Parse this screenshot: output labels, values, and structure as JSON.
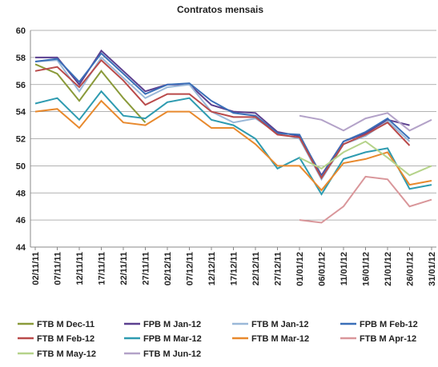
{
  "chart_data": {
    "type": "line",
    "title": "Contratos mensais",
    "categories": [
      "02/11/11",
      "07/11/11",
      "12/11/11",
      "17/11/11",
      "22/11/11",
      "27/11/11",
      "02/12/11",
      "07/12/11",
      "12/12/11",
      "17/12/11",
      "22/12/11",
      "27/12/11",
      "01/01/12",
      "06/01/12",
      "11/01/12",
      "16/01/12",
      "21/01/12",
      "26/01/12",
      "31/01/12"
    ],
    "ylim": [
      44,
      60
    ],
    "yticks": [
      44,
      46,
      48,
      50,
      52,
      54,
      56,
      58,
      60
    ],
    "grid": true,
    "series": [
      {
        "name": "FTB M Dec-11",
        "color": "#8a9a3a",
        "values": [
          57.5,
          56.8,
          54.8,
          57,
          55,
          53.2,
          null,
          null,
          null,
          null,
          null,
          null,
          null,
          null,
          null,
          null,
          null,
          null,
          null
        ]
      },
      {
        "name": "FPB M Jan-12",
        "color": "#5b3f8f",
        "values": [
          58,
          58,
          56,
          58.5,
          57,
          55.5,
          56,
          56,
          54.5,
          54,
          53.9,
          52.5,
          52.2,
          49.3,
          51.8,
          52.4,
          53.4,
          53,
          null
        ]
      },
      {
        "name": "FTB M Jan-12",
        "color": "#9ab8d8",
        "values": [
          57.7,
          57.8,
          55.5,
          58,
          56.5,
          55,
          55.8,
          56,
          54,
          53.2,
          53.5,
          52.4,
          52,
          49,
          51.6,
          52.2,
          53.3,
          51.8,
          null
        ]
      },
      {
        "name": "FPB M Feb-12",
        "color": "#3a6fb8",
        "values": [
          57.7,
          57.9,
          56.2,
          58.3,
          56.8,
          55.3,
          56,
          56.1,
          54.8,
          53.9,
          53.7,
          52.4,
          52.3,
          49.2,
          51.8,
          52.5,
          53.5,
          52,
          null
        ]
      },
      {
        "name": "FTB M Feb-12",
        "color": "#b94a4a",
        "values": [
          57,
          57.3,
          55.8,
          57.8,
          56.3,
          54.5,
          55.3,
          55.3,
          54,
          53.6,
          53.6,
          52.3,
          52.1,
          49.1,
          51.6,
          52.3,
          53.2,
          51.5,
          null
        ]
      },
      {
        "name": "FPB M Mar-12",
        "color": "#2e9bb0",
        "values": [
          54.6,
          55,
          53.4,
          55.5,
          53.7,
          53.5,
          54.7,
          55,
          53.4,
          53,
          52,
          49.8,
          50.6,
          47.9,
          50.5,
          51,
          51.3,
          48.3,
          48.6
        ]
      },
      {
        "name": "FTB M Mar-12",
        "color": "#e8892d",
        "values": [
          54,
          54.2,
          52.8,
          54.8,
          53.2,
          53,
          54,
          54,
          52.8,
          52.8,
          51.6,
          50,
          50,
          48.2,
          50.2,
          50.5,
          51,
          48.6,
          48.9
        ]
      },
      {
        "name": "FTB M Apr-12",
        "color": "#d9969a",
        "values": [
          null,
          null,
          null,
          null,
          null,
          null,
          null,
          null,
          null,
          null,
          null,
          null,
          46,
          45.8,
          47,
          49.2,
          49,
          47,
          47.5
        ]
      },
      {
        "name": "FTB M May-12",
        "color": "#b5d38a",
        "values": [
          null,
          null,
          null,
          null,
          null,
          null,
          null,
          null,
          null,
          null,
          null,
          null,
          50.6,
          49.8,
          51,
          51.8,
          50.6,
          49.3,
          50
        ]
      },
      {
        "name": "FTB M Jun-12",
        "color": "#b3a2c8",
        "values": [
          null,
          null,
          null,
          null,
          null,
          null,
          null,
          null,
          null,
          null,
          null,
          null,
          53.7,
          53.4,
          52.6,
          53.5,
          53.9,
          52.6,
          53.4
        ]
      }
    ]
  }
}
